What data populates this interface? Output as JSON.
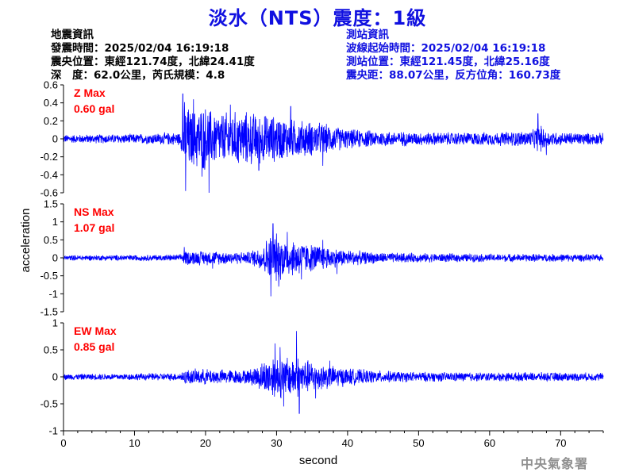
{
  "title": "淡水（NTS）震度：1級",
  "earthquake_info": {
    "heading": "地震資訊",
    "origin_time": "發震時間：2025/02/04 16:19:18",
    "epicenter": "震央位置：東經121.74度，北緯24.41度",
    "depth_magnitude": "深　度：62.0公里，芮氏規模：4.8"
  },
  "station_info": {
    "heading": "測站資訊",
    "waveform_start": "波線起始時間：2025/02/04 16:19:18",
    "station_location": "測站位置：東經121.45度，北緯25.16度",
    "epicentral_distance": "震央距：88.07公里，反方位角：160.73度"
  },
  "credit": "中央氣象署",
  "colors": {
    "trace": "#0000ff",
    "max_label": "#ff0000",
    "title": "#1010e0"
  },
  "chart_data": {
    "type": "line",
    "xlabel": "second",
    "ylabel": "acceleration",
    "xlim": [
      0,
      76
    ],
    "x_ticks": [
      0,
      10,
      20,
      30,
      40,
      50,
      60,
      70
    ],
    "panels": [
      {
        "component": "Z",
        "max_label": "Z Max",
        "max_value": "0.60 gal",
        "ylim": [
          -0.6,
          0.6
        ],
        "y_ticks": [
          0.6,
          0.4,
          0.2,
          0,
          -0.2,
          -0.4,
          -0.6
        ],
        "envelope": {
          "t": [
            0,
            10,
            16.5,
            17,
            18,
            19,
            20,
            21,
            22,
            24,
            26,
            28,
            30,
            32,
            34,
            36,
            38,
            40,
            44,
            50,
            60,
            66,
            67,
            68,
            70,
            76
          ],
          "amp": [
            0.05,
            0.06,
            0.08,
            0.45,
            0.35,
            0.38,
            0.4,
            0.34,
            0.32,
            0.33,
            0.33,
            0.3,
            0.28,
            0.24,
            0.22,
            0.2,
            0.16,
            0.12,
            0.1,
            0.08,
            0.08,
            0.1,
            0.18,
            0.1,
            0.08,
            0.07
          ]
        },
        "spikes": [
          {
            "t": 16.8,
            "y": 0.5
          },
          {
            "t": 17.2,
            "y": -0.58
          },
          {
            "t": 20.5,
            "y": -0.6
          },
          {
            "t": 18.3,
            "y": 0.44
          },
          {
            "t": 19.5,
            "y": -0.42
          },
          {
            "t": 23.5,
            "y": 0.38
          },
          {
            "t": 27.5,
            "y": -0.35
          },
          {
            "t": 32,
            "y": 0.36
          },
          {
            "t": 36.5,
            "y": -0.3
          },
          {
            "t": 66.8,
            "y": 0.28
          },
          {
            "t": 68,
            "y": -0.18
          }
        ]
      },
      {
        "component": "NS",
        "max_label": "NS Max",
        "max_value": "1.07 gal",
        "ylim": [
          -1.5,
          1.5
        ],
        "y_ticks": [
          1.5,
          1,
          0.5,
          0,
          -0.5,
          -1,
          -1.5
        ],
        "envelope": {
          "t": [
            0,
            10,
            16.5,
            17,
            20,
            22,
            26,
            28,
            29,
            30,
            31,
            32,
            33,
            34,
            36,
            38,
            40,
            42,
            45,
            50,
            60,
            70,
            76
          ],
          "amp": [
            0.08,
            0.09,
            0.1,
            0.22,
            0.22,
            0.2,
            0.18,
            0.4,
            0.7,
            0.75,
            0.6,
            0.55,
            0.58,
            0.45,
            0.4,
            0.3,
            0.25,
            0.2,
            0.16,
            0.14,
            0.12,
            0.12,
            0.1
          ]
        },
        "spikes": [
          {
            "t": 29.2,
            "y": -1.07
          },
          {
            "t": 29.5,
            "y": 0.95
          },
          {
            "t": 30.3,
            "y": -0.8
          },
          {
            "t": 31.5,
            "y": 0.72
          },
          {
            "t": 33.5,
            "y": -0.6
          },
          {
            "t": 36.5,
            "y": 0.5
          },
          {
            "t": 38.5,
            "y": -0.45
          },
          {
            "t": 17,
            "y": 0.3
          },
          {
            "t": 21,
            "y": -0.3
          }
        ]
      },
      {
        "component": "EW",
        "max_label": "EW Max",
        "max_value": "0.85 gal",
        "ylim": [
          -1,
          1
        ],
        "y_ticks": [
          1,
          0.5,
          0,
          -0.5,
          -1
        ],
        "envelope": {
          "t": [
            0,
            10,
            16.5,
            17,
            20,
            22,
            26,
            28,
            29,
            30,
            31,
            32,
            33,
            34,
            36,
            38,
            40,
            42,
            45,
            50,
            60,
            70,
            76
          ],
          "amp": [
            0.06,
            0.07,
            0.08,
            0.15,
            0.16,
            0.15,
            0.14,
            0.3,
            0.42,
            0.45,
            0.42,
            0.4,
            0.42,
            0.35,
            0.28,
            0.22,
            0.18,
            0.15,
            0.12,
            0.1,
            0.09,
            0.09,
            0.08
          ]
        },
        "spikes": [
          {
            "t": 32.8,
            "y": 0.85
          },
          {
            "t": 33.2,
            "y": -0.68
          },
          {
            "t": 29.8,
            "y": 0.62
          },
          {
            "t": 31,
            "y": -0.55
          },
          {
            "t": 30.5,
            "y": 0.55
          },
          {
            "t": 37.5,
            "y": 0.3
          },
          {
            "t": 35.5,
            "y": -0.4
          }
        ]
      }
    ]
  }
}
